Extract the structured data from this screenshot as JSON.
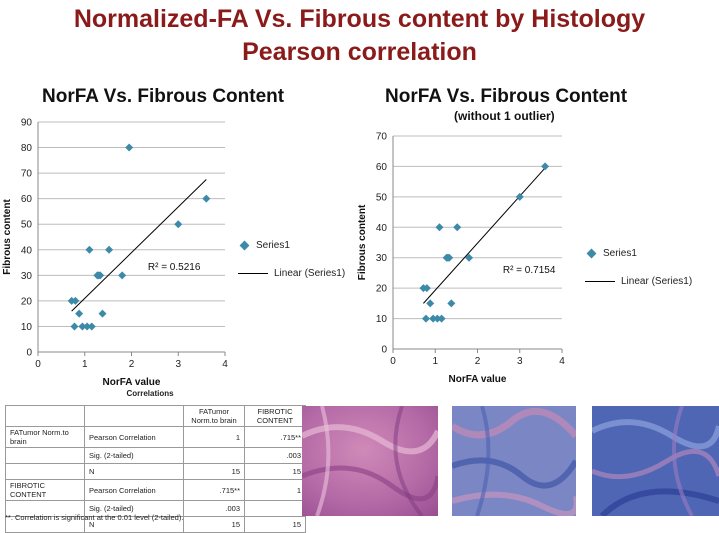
{
  "page": {
    "title_line1": "Normalized-FA Vs. Fibrous content by Histology",
    "title_line2": "Pearson correlation"
  },
  "colors": {
    "title": "#8b1a1a",
    "series_marker": "#3d8aa8",
    "trendline": "#000000"
  },
  "chart_data": [
    {
      "type": "scatter",
      "title": "NorFA Vs. Fibrous Content",
      "xlabel": "NorFA value",
      "ylabel": "Fibrous content",
      "xlim": [
        0,
        4
      ],
      "ylim": [
        0,
        90
      ],
      "xticks": [
        0,
        1,
        2,
        3,
        4
      ],
      "yticks": [
        0,
        10,
        20,
        30,
        40,
        50,
        60,
        70,
        80,
        90
      ],
      "grid": "horizontal",
      "series": [
        {
          "name": "Series1",
          "x": [
            0.72,
            0.8,
            0.78,
            0.88,
            0.95,
            1.05,
            1.15,
            1.1,
            1.27,
            1.33,
            1.3,
            1.52,
            1.38,
            1.8,
            1.95,
            3.0,
            3.6
          ],
          "y": [
            20,
            20,
            10,
            15,
            10,
            10,
            10,
            40,
            30,
            30,
            30,
            40,
            15,
            30,
            80,
            50,
            60
          ]
        }
      ],
      "trendline": {
        "name": "Linear (Series1)",
        "points": [
          [
            0.72,
            16
          ],
          [
            3.6,
            67.5
          ]
        ],
        "r2_label": "R² = 0.5216"
      },
      "legend_position": "right"
    },
    {
      "type": "scatter",
      "title": "NorFA Vs. Fibrous Content",
      "subtitle": "(without 1 outlier)",
      "xlabel": "NorFA value",
      "ylabel": "Fibrous content",
      "xlim": [
        0,
        4
      ],
      "ylim": [
        0,
        70
      ],
      "xticks": [
        0,
        1,
        2,
        3,
        4
      ],
      "yticks": [
        0,
        10,
        20,
        30,
        40,
        50,
        60,
        70
      ],
      "grid": "horizontal",
      "series": [
        {
          "name": "Series1",
          "x": [
            0.72,
            0.8,
            0.78,
            0.88,
            0.95,
            1.05,
            1.15,
            1.1,
            1.27,
            1.33,
            1.3,
            1.52,
            1.38,
            1.8,
            3.0,
            3.6
          ],
          "y": [
            20,
            20,
            10,
            15,
            10,
            10,
            10,
            40,
            30,
            30,
            30,
            40,
            15,
            30,
            50,
            60
          ]
        }
      ],
      "trendline": {
        "name": "Linear (Series1)",
        "points": [
          [
            0.72,
            15
          ],
          [
            3.6,
            59.5
          ]
        ],
        "r2_label": "R² = 0.7154"
      },
      "legend_position": "right"
    }
  ],
  "correlations": {
    "caption": "Correlations",
    "col_headers": [
      "FATumor Norm.to brain",
      "FIBROTIC CONTENT"
    ],
    "rows": [
      {
        "var": "FATumor Norm.to brain",
        "stat": "Pearson Correlation",
        "v1": "1",
        "v2": ".715**"
      },
      {
        "var": "",
        "stat": "Sig. (2-tailed)",
        "v1": "",
        "v2": ".003"
      },
      {
        "var": "",
        "stat": "N",
        "v1": "15",
        "v2": "15"
      },
      {
        "var": "FIBROTIC CONTENT",
        "stat": "Pearson Correlation",
        "v1": ".715**",
        "v2": "1"
      },
      {
        "var": "",
        "stat": "Sig. (2-tailed)",
        "v1": ".003",
        "v2": ""
      },
      {
        "var": "",
        "stat": "N",
        "v1": "15",
        "v2": "15"
      }
    ],
    "footnote": "**. Correlation is significant at the 0.01 level (2-tailed)."
  }
}
